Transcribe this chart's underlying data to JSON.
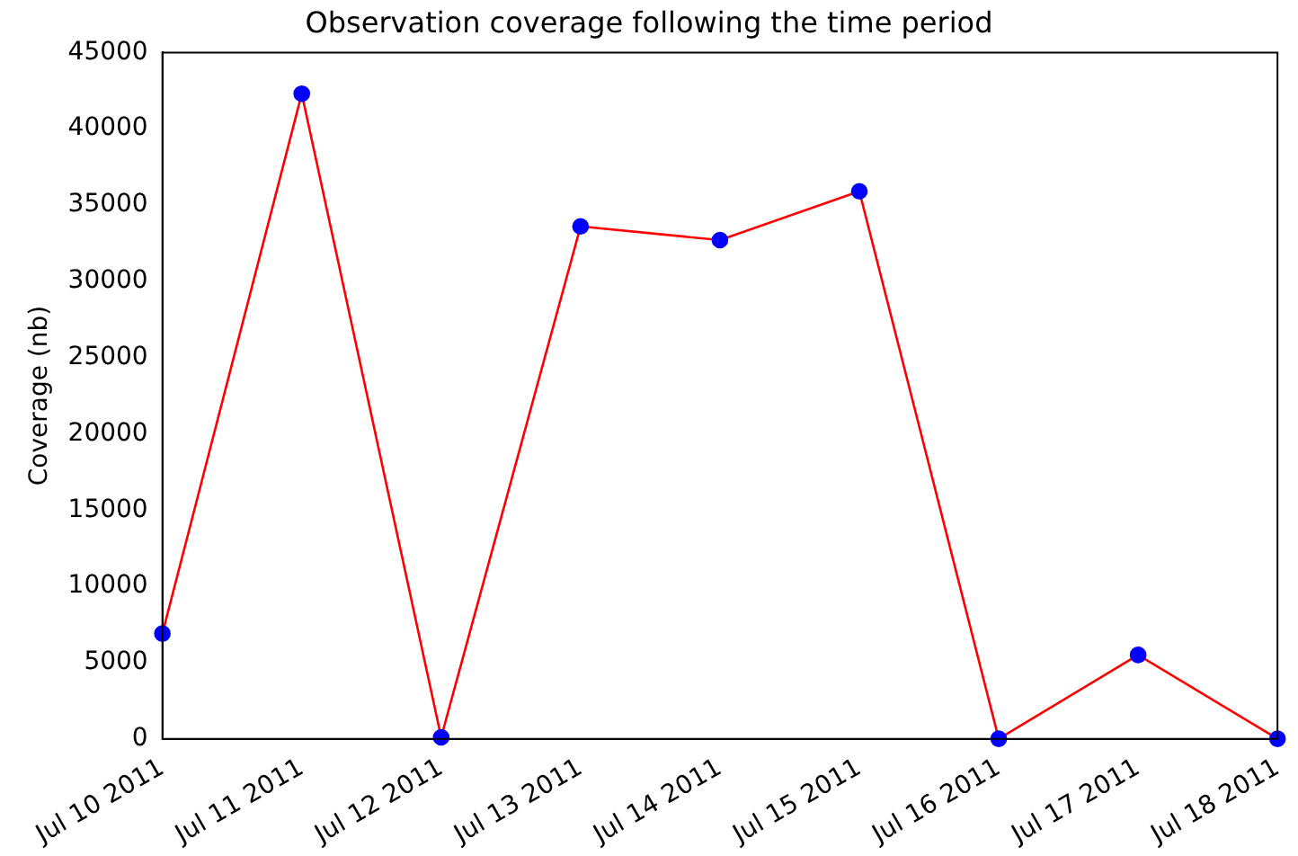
{
  "chart_data": {
    "type": "line",
    "title": "Observation coverage following the time period",
    "ylabel": "Coverage (nb)",
    "categories": [
      "Jul 10 2011",
      "Jul 11 2011",
      "Jul 12 2011",
      "Jul 13 2011",
      "Jul 14 2011",
      "Jul 15 2011",
      "Jul 16 2011",
      "Jul 17 2011",
      "Jul 18 2011"
    ],
    "series": [
      {
        "color": "#ff0000",
        "values": [
          6900,
          42300,
          100,
          33600,
          32700,
          35900,
          0,
          5500,
          0
        ]
      }
    ],
    "ylim": [
      0,
      45000
    ],
    "yticks": [
      0,
      5000,
      10000,
      15000,
      20000,
      25000,
      30000,
      35000,
      40000,
      45000
    ],
    "grid": false,
    "legend": false,
    "marker": "circle",
    "line_style": "solid"
  }
}
